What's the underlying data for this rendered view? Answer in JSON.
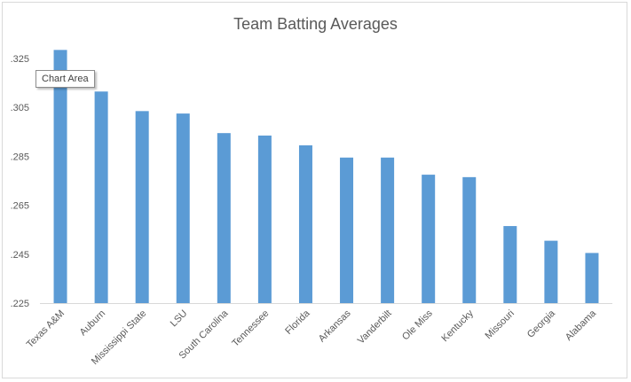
{
  "chart_data": {
    "type": "bar",
    "title": "Team Batting Averages",
    "xlabel": "",
    "ylabel": "",
    "categories": [
      "Texas A&M",
      "Auburn",
      "Mississippi State",
      "LSU",
      "South Carolina",
      "Tennessee",
      "Florida",
      "Arkansas",
      "Vanderbilt",
      "Ole Miss",
      "Kentucky",
      "Missouri",
      "Georgia",
      "Alabama"
    ],
    "values": [
      0.3285,
      0.3115,
      0.3035,
      0.3025,
      0.2945,
      0.2935,
      0.2895,
      0.2845,
      0.2845,
      0.2775,
      0.2765,
      0.2565,
      0.2505,
      0.2455
    ],
    "ylim": [
      0.225,
      0.325
    ],
    "yticks": [
      ".225",
      ".245",
      ".265",
      ".285",
      ".305",
      ".325"
    ],
    "ytick_values": [
      0.225,
      0.245,
      0.265,
      0.285,
      0.305,
      0.325
    ],
    "grid": false,
    "legend": "none",
    "bar_color": "#5b9bd5"
  },
  "tooltip": {
    "text": "Chart Area"
  }
}
